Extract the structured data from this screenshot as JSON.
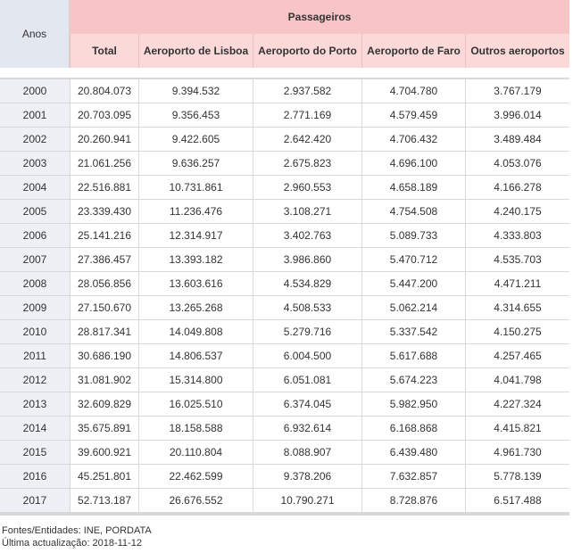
{
  "header": {
    "group": "Passageiros",
    "year_column": "Anos",
    "columns": [
      "Total",
      "Aeroporto de Lisboa",
      "Aeroporto do Porto",
      "Aeroporto de Faro",
      "Outros aeroportos"
    ]
  },
  "table": {
    "rows": [
      [
        "2000",
        "20.804.073",
        "9.394.532",
        "2.937.582",
        "4.704.780",
        "3.767.179"
      ],
      [
        "2001",
        "20.703.095",
        "9.356.453",
        "2.771.169",
        "4.579.459",
        "3.996.014"
      ],
      [
        "2002",
        "20.260.941",
        "9.422.605",
        "2.642.420",
        "4.706.432",
        "3.489.484"
      ],
      [
        "2003",
        "21.061.256",
        "9.636.257",
        "2.675.823",
        "4.696.100",
        "4.053.076"
      ],
      [
        "2004",
        "22.516.881",
        "10.731.861",
        "2.960.553",
        "4.658.189",
        "4.166.278"
      ],
      [
        "2005",
        "23.339.430",
        "11.236.476",
        "3.108.271",
        "4.754.508",
        "4.240.175"
      ],
      [
        "2006",
        "25.141.216",
        "12.314.917",
        "3.402.763",
        "5.089.733",
        "4.333.803"
      ],
      [
        "2007",
        "27.386.457",
        "13.393.182",
        "3.986.860",
        "5.470.712",
        "4.535.703"
      ],
      [
        "2008",
        "28.056.856",
        "13.603.616",
        "4.534.829",
        "5.447.200",
        "4.471.211"
      ],
      [
        "2009",
        "27.150.670",
        "13.265.268",
        "4.508.533",
        "5.062.214",
        "4.314.655"
      ],
      [
        "2010",
        "28.817.341",
        "14.049.808",
        "5.279.716",
        "5.337.542",
        "4.150.275"
      ],
      [
        "2011",
        "30.686.190",
        "14.806.537",
        "6.004.500",
        "5.617.688",
        "4.257.465"
      ],
      [
        "2012",
        "31.081.902",
        "15.314.800",
        "6.051.081",
        "5.674.223",
        "4.041.798"
      ],
      [
        "2013",
        "32.609.829",
        "16.025.510",
        "6.374.045",
        "5.982.950",
        "4.227.324"
      ],
      [
        "2014",
        "35.675.891",
        "18.158.588",
        "6.932.614",
        "6.168.868",
        "4.415.821"
      ],
      [
        "2015",
        "39.600.921",
        "20.110.804",
        "8.088.907",
        "6.439.480",
        "4.961.730"
      ],
      [
        "2016",
        "45.251.801",
        "22.462.599",
        "9.378.206",
        "7.632.857",
        "5.778.139"
      ],
      [
        "2017",
        "52.713.187",
        "26.676.552",
        "10.790.271",
        "8.728.876",
        "6.517.488"
      ]
    ]
  },
  "footer": {
    "sources": "Fontes/Entidades: INE, PORDATA",
    "updated": "Última actualização: 2018-11-12"
  }
}
